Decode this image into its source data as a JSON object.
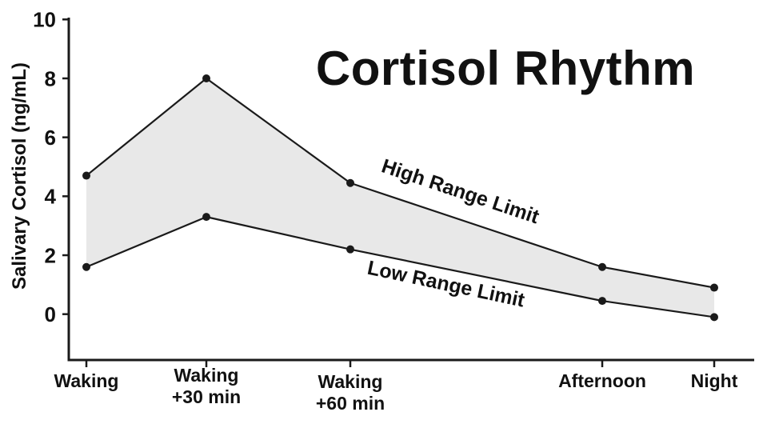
{
  "chart_data": {
    "type": "area",
    "title": "Cortisol Rhythm",
    "ylabel": "Salivary Cortisol (ng/mL)",
    "xlabel": "",
    "categories": [
      "Waking",
      "Waking\n+30 min",
      "Waking\n+60 min",
      "Afternoon",
      "Night"
    ],
    "series": [
      {
        "name": "High Range Limit",
        "values": [
          4.7,
          8.0,
          4.45,
          1.6,
          0.9
        ]
      },
      {
        "name": "Low Range Limit",
        "values": [
          1.6,
          3.3,
          2.2,
          0.45,
          -0.1
        ]
      }
    ],
    "ylim": [
      -1.6,
      10
    ],
    "yticks": [
      0,
      2,
      4,
      6,
      8,
      10
    ],
    "grid": false,
    "legend_position": "labels-rotated-along-lines",
    "marker": "filled-circle",
    "colors": {
      "line": "#1a1a1a",
      "band_fill": "#e8e8e8",
      "axis": "#1a1a1a",
      "text": "#111111",
      "background": "#ffffff"
    }
  }
}
